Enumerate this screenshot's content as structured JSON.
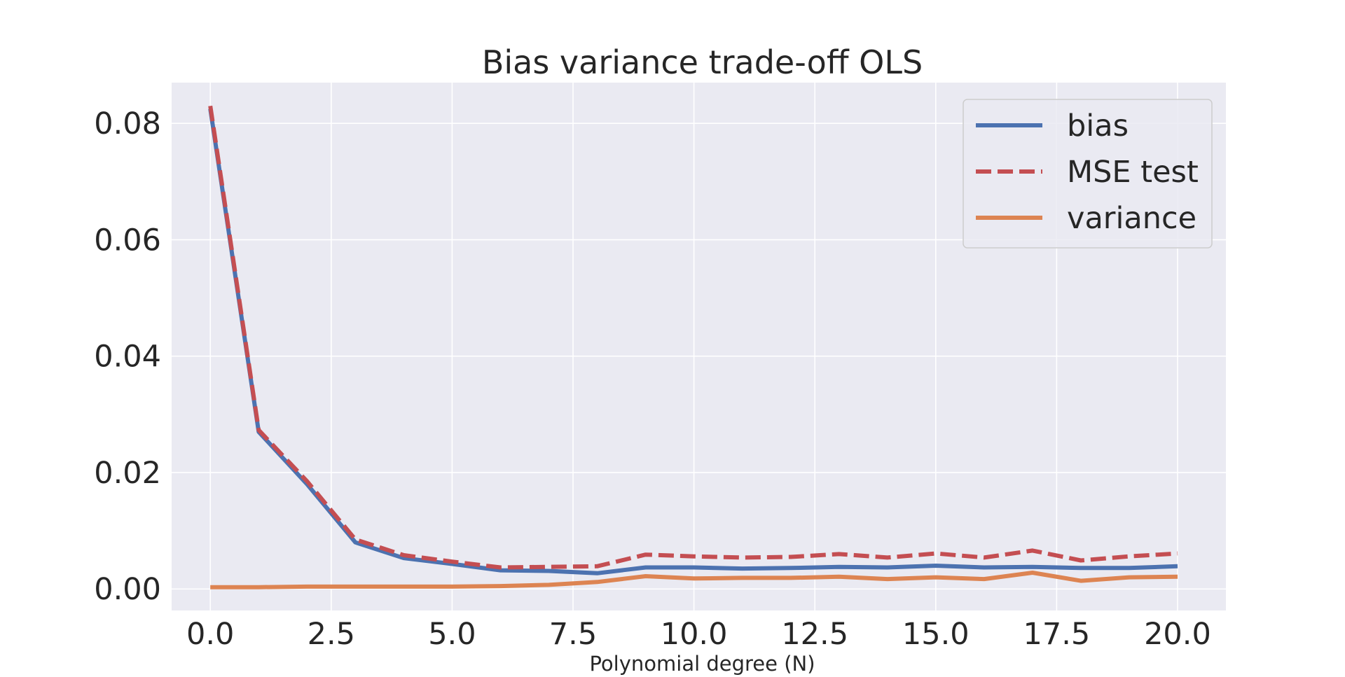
{
  "chart_data": {
    "type": "line",
    "title": "Bias variance trade-off OLS",
    "xlabel": "Polynomial degree (N)",
    "ylabel": "",
    "xlim": [
      -0.8,
      21.0
    ],
    "ylim": [
      -0.0037,
      0.087
    ],
    "xticks": [
      0.0,
      2.5,
      5.0,
      7.5,
      10.0,
      12.5,
      15.0,
      17.5,
      20.0
    ],
    "xtick_labels": [
      "0.0",
      "2.5",
      "5.0",
      "7.5",
      "10.0",
      "12.5",
      "15.0",
      "17.5",
      "20.0"
    ],
    "yticks": [
      0.0,
      0.02,
      0.04,
      0.06,
      0.08
    ],
    "ytick_labels": [
      "0.00",
      "0.02",
      "0.04",
      "0.06",
      "0.08"
    ],
    "grid": true,
    "legend_position": "top-right",
    "x": [
      0,
      1,
      2,
      3,
      4,
      5,
      6,
      7,
      8,
      9,
      10,
      11,
      12,
      13,
      14,
      15,
      16,
      17,
      18,
      19,
      20
    ],
    "series": [
      {
        "name": "bias",
        "color": "#4c72b0",
        "style": "solid",
        "values": [
          0.0825,
          0.027,
          0.018,
          0.008,
          0.0053,
          0.0043,
          0.0032,
          0.0031,
          0.0027,
          0.0037,
          0.0037,
          0.0035,
          0.0036,
          0.0038,
          0.0037,
          0.004,
          0.0037,
          0.0038,
          0.0036,
          0.0036,
          0.0039
        ]
      },
      {
        "name": "MSE test",
        "color": "#c44e52",
        "style": "dashed",
        "values": [
          0.083,
          0.0273,
          0.0185,
          0.0085,
          0.0058,
          0.0047,
          0.0037,
          0.0038,
          0.0039,
          0.0059,
          0.0056,
          0.0054,
          0.0055,
          0.006,
          0.0054,
          0.0061,
          0.0054,
          0.0066,
          0.0049,
          0.0056,
          0.0061
        ]
      },
      {
        "name": "variance",
        "color": "#dd8452",
        "style": "solid",
        "values": [
          0.0003,
          0.0003,
          0.0004,
          0.0004,
          0.0004,
          0.0004,
          0.0005,
          0.0007,
          0.0012,
          0.0022,
          0.0018,
          0.0019,
          0.0019,
          0.0021,
          0.0017,
          0.002,
          0.0017,
          0.0028,
          0.0014,
          0.002,
          0.0021
        ]
      }
    ]
  },
  "colors": {
    "plot_background": "#eaeaf2",
    "grid": "#ffffff",
    "text": "#262626"
  }
}
